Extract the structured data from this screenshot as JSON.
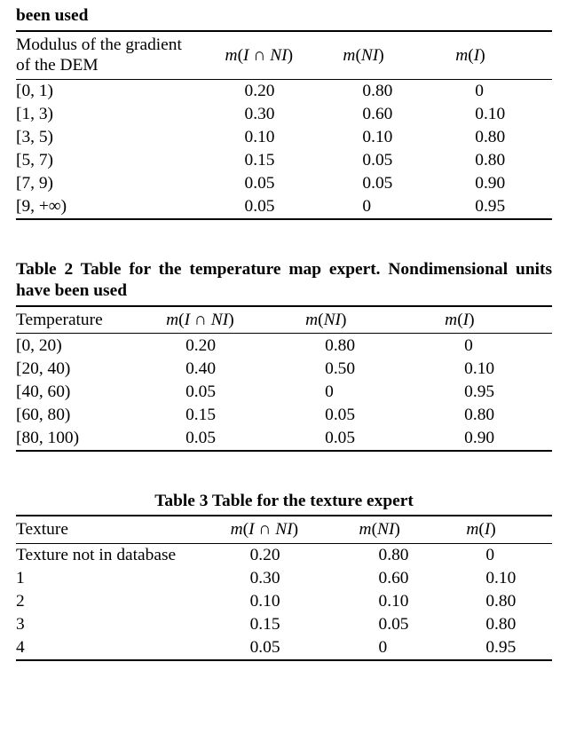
{
  "table1": {
    "caption_fragment": "been used",
    "header_col1_l1": "Modulus of the gradient",
    "header_col1_l2": "of the DEM",
    "header_col2": "m(I ∩ NI)",
    "header_col3": "m(NI)",
    "header_col4": "m(I)",
    "rows": [
      {
        "label": "[0, 1)",
        "c2": "0.20",
        "c3": "0.80",
        "c4": "0"
      },
      {
        "label": "[1, 3)",
        "c2": "0.30",
        "c3": "0.60",
        "c4": "0.10"
      },
      {
        "label": "[3, 5)",
        "c2": "0.10",
        "c3": "0.10",
        "c4": "0.80"
      },
      {
        "label": "[5, 7)",
        "c2": "0.15",
        "c3": "0.05",
        "c4": "0.80"
      },
      {
        "label": "[7, 9)",
        "c2": "0.05",
        "c3": "0.05",
        "c4": "0.90"
      },
      {
        "label": "[9, +∞)",
        "c2": "0.05",
        "c3": "0",
        "c4": "0.95"
      }
    ],
    "col_widths": [
      "39%",
      "22%",
      "21%",
      "18%"
    ]
  },
  "table2": {
    "caption": "Table 2  Table for the temperature map expert. Nondimensional units have been used",
    "header_col1": "Temperature",
    "header_col2": "m(I ∩ NI)",
    "header_col3": "m(NI)",
    "header_col4": "m(I)",
    "rows": [
      {
        "label": "[0, 20)",
        "c2": "0.20",
        "c3": "0.80",
        "c4": "0"
      },
      {
        "label": "[20, 40)",
        "c2": "0.40",
        "c3": "0.50",
        "c4": "0.10"
      },
      {
        "label": "[40, 60)",
        "c2": "0.05",
        "c3": "0",
        "c4": "0.95"
      },
      {
        "label": "[60, 80)",
        "c2": "0.15",
        "c3": "0.05",
        "c4": "0.80"
      },
      {
        "label": "[80, 100)",
        "c2": "0.05",
        "c3": "0.05",
        "c4": "0.90"
      }
    ],
    "col_widths": [
      "28%",
      "26%",
      "26%",
      "20%"
    ]
  },
  "table3": {
    "caption": "Table 3  Table for the texture expert",
    "header_col1": "Texture",
    "header_col2": "m(I ∩ NI)",
    "header_col3": "m(NI)",
    "header_col4": "m(I)",
    "rows": [
      {
        "label": "Texture not in database",
        "c2": "0.20",
        "c3": "0.80",
        "c4": "0"
      },
      {
        "label": "1",
        "c2": "0.30",
        "c3": "0.60",
        "c4": "0.10"
      },
      {
        "label": "2",
        "c2": "0.10",
        "c3": "0.10",
        "c4": "0.80"
      },
      {
        "label": "3",
        "c2": "0.15",
        "c3": "0.05",
        "c4": "0.80"
      },
      {
        "label": "4",
        "c2": "0.05",
        "c3": "0",
        "c4": "0.95"
      }
    ],
    "col_widths": [
      "40%",
      "24%",
      "20%",
      "16%"
    ]
  }
}
